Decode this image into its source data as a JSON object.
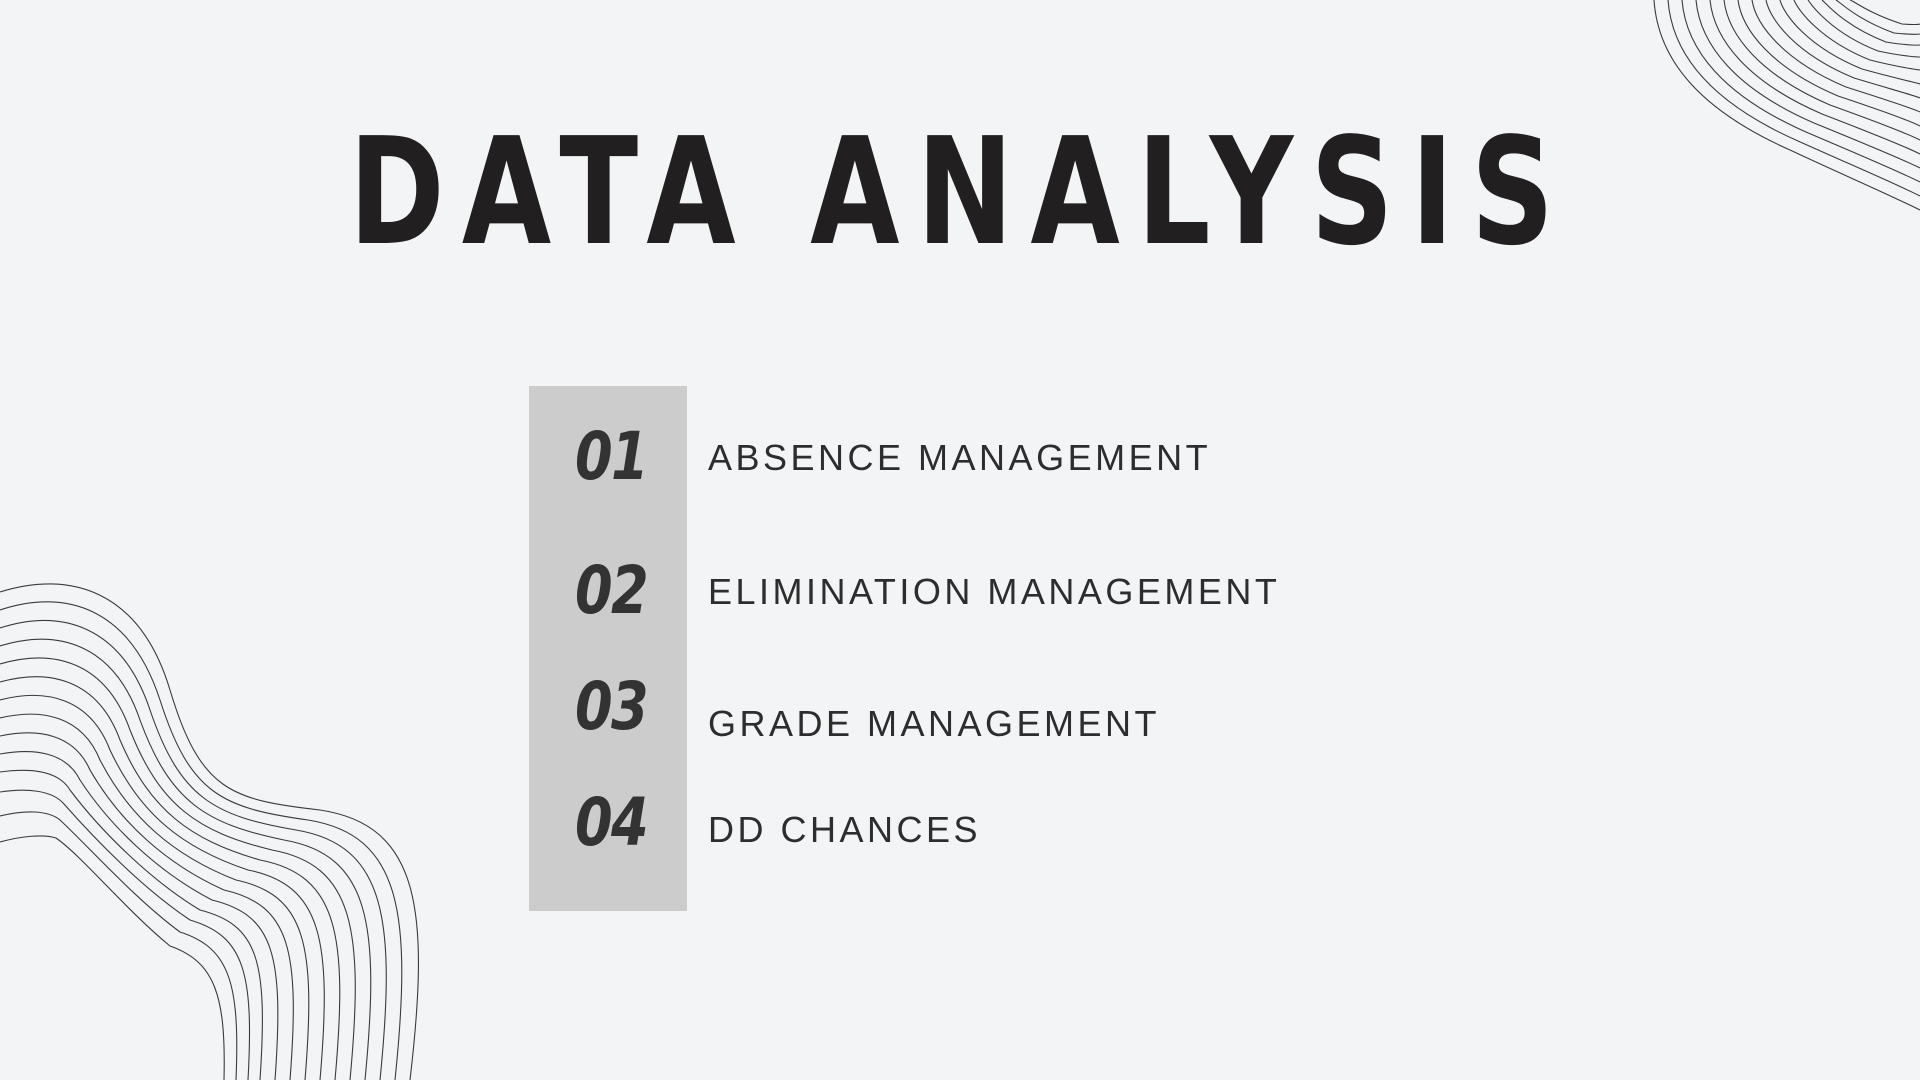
{
  "slide": {
    "title": "DATA ANALYSIS",
    "items": [
      {
        "number": "01",
        "label": "ABSENCE MANAGEMENT"
      },
      {
        "number": "02",
        "label": "ELIMINATION MANAGEMENT"
      },
      {
        "number": "03",
        "label": "GRADE MANAGEMENT"
      },
      {
        "number": "04",
        "label": "DD CHANCES"
      }
    ]
  },
  "colors": {
    "background": "#f3f4f6",
    "title": "#221f20",
    "number_column": "#cccccc",
    "number_text": "#333333",
    "label_text": "#2d2d2d",
    "line_art": "#3a3a3a"
  }
}
